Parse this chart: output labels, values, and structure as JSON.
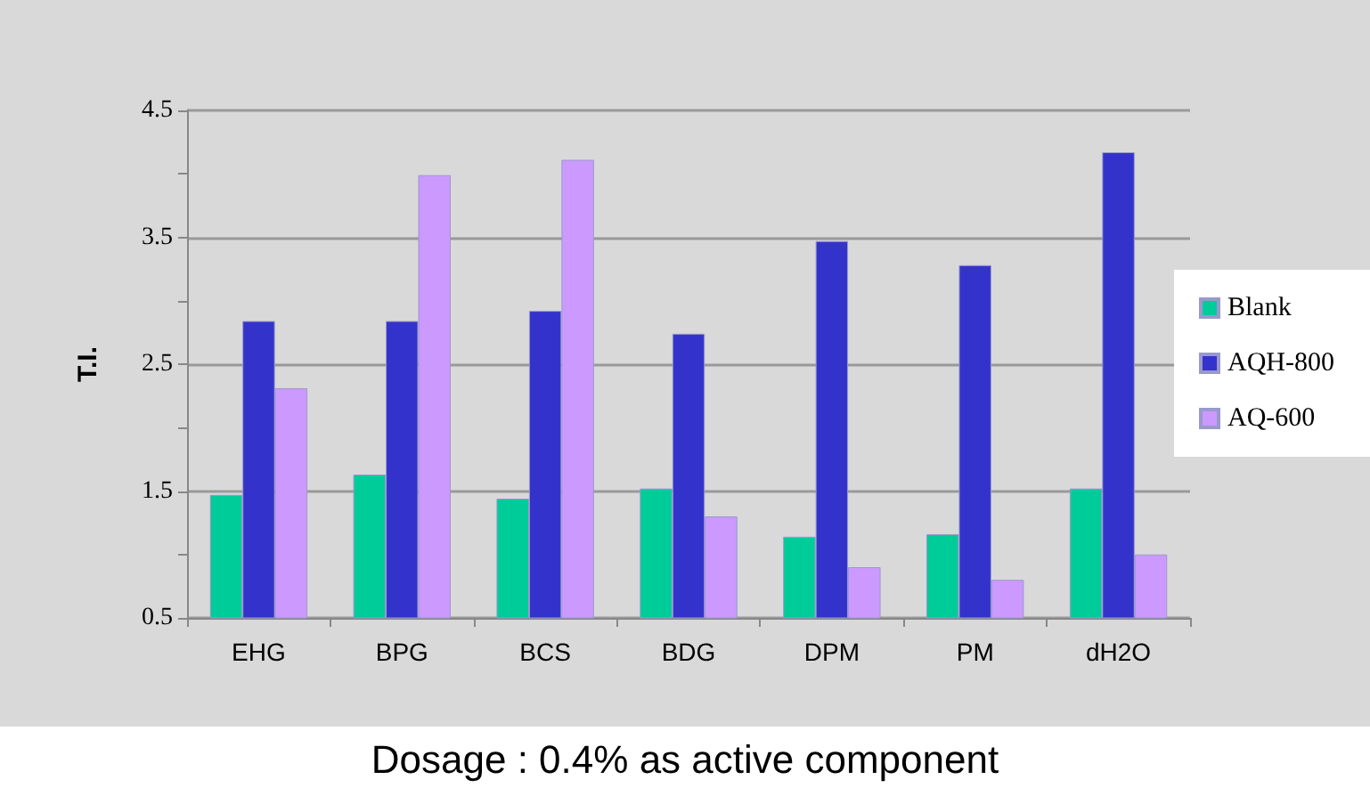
{
  "chart_data": {
    "type": "bar",
    "ylabel": "T.I.",
    "categories": [
      "EHG",
      "BPG",
      "BCS",
      "BDG",
      "DPM",
      "PM",
      "dH2O"
    ],
    "series": [
      {
        "name": "Blank",
        "color": "#00cc99",
        "values": [
          1.47,
          1.63,
          1.44,
          1.52,
          1.14,
          1.16,
          1.52
        ]
      },
      {
        "name": "AQH-800",
        "color": "#3333cc",
        "values": [
          2.84,
          2.84,
          2.92,
          2.74,
          3.47,
          3.28,
          4.17
        ]
      },
      {
        "name": "AQ-600",
        "color": "#cc99ff",
        "values": [
          2.31,
          3.99,
          4.11,
          1.3,
          0.9,
          0.8,
          1.0
        ]
      }
    ],
    "ylim": [
      0.5,
      4.5
    ],
    "yticks": [
      0.5,
      {
        "value": 1,
        "label": null
      },
      1.5,
      {
        "value": 2,
        "label": null
      },
      2.5,
      {
        "value": 3,
        "label": null
      },
      3.5,
      {
        "value": 4,
        "label": null
      },
      4.5
    ],
    "grid": "y",
    "legend": "right",
    "annotations": [
      "Dosage : 0.4% as active component"
    ]
  }
}
